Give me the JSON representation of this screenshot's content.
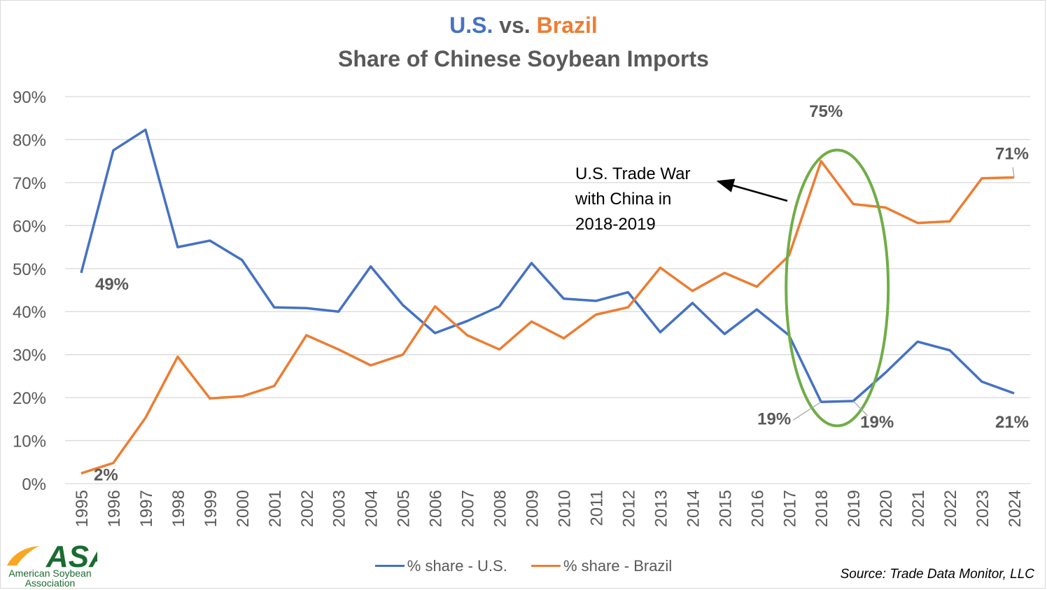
{
  "title": {
    "us": "U.S.",
    "vs": " vs. ",
    "brazil": "Brazil",
    "line2": "Share of Chinese Soybean Imports"
  },
  "legend": {
    "us": "% share - U.S.",
    "brazil": "% share - Brazil"
  },
  "source": "Source: Trade Data Monitor, LLC",
  "logo": {
    "mark": "ASA",
    "line1": "American Soybean",
    "line2": "Association"
  },
  "annotation": {
    "lines": [
      "U.S. Trade War",
      "with China in",
      "2018-2019"
    ]
  },
  "colors": {
    "us": "#4472c4",
    "brazil": "#ed7d31",
    "highlight": "#70ad47",
    "grid": "#d9d9d9",
    "axis_text": "#595959",
    "logo_green": "#1a6b30",
    "logo_orange": "#f7a823"
  },
  "chart_data": {
    "type": "line",
    "title": "U.S. vs. Brazil Share of Chinese Soybean Imports",
    "x": [
      "1995",
      "1996",
      "1997",
      "1998",
      "1999",
      "2000",
      "2001",
      "2002",
      "2003",
      "2004",
      "2005",
      "2006",
      "2007",
      "2008",
      "2009",
      "2010",
      "2011",
      "2012",
      "2013",
      "2014",
      "2015",
      "2016",
      "2017",
      "2018",
      "2019",
      "2020",
      "2021",
      "2022",
      "2023",
      "2024"
    ],
    "y_ticks": [
      "0%",
      "10%",
      "20%",
      "30%",
      "40%",
      "50%",
      "60%",
      "70%",
      "80%",
      "90%"
    ],
    "ylim": [
      0,
      90
    ],
    "grid": "horizontal",
    "legend_position": "bottom",
    "series": [
      {
        "name": "% share - U.S.",
        "values": [
          49,
          77.5,
          82.3,
          55,
          56.5,
          52,
          41,
          40.8,
          40,
          50.5,
          41.5,
          35,
          37.8,
          41.2,
          51.3,
          43,
          42.5,
          44.5,
          35.2,
          42,
          34.8,
          40.5,
          34.5,
          19,
          19.2,
          25.8,
          33,
          31,
          23.7,
          21
        ]
      },
      {
        "name": "% share - Brazil",
        "values": [
          2.4,
          4.8,
          15.3,
          29.5,
          19.8,
          20.3,
          22.7,
          34.5,
          31.2,
          27.5,
          30,
          41.2,
          34.5,
          31.2,
          37.7,
          33.8,
          39.3,
          41,
          50.2,
          44.8,
          49,
          45.8,
          53,
          75,
          65,
          64.2,
          60.6,
          61,
          71,
          71.2
        ]
      }
    ],
    "data_labels": [
      {
        "text": "49%",
        "series": "% share - U.S.",
        "x": "1995"
      },
      {
        "text": "2%",
        "series": "% share - Brazil",
        "x": "1995"
      },
      {
        "text": "75%",
        "series": "% share - Brazil",
        "x": "2018"
      },
      {
        "text": "71%",
        "series": "% share - Brazil",
        "x": "2024"
      },
      {
        "text": "19%",
        "series": "% share - U.S.",
        "x": "2018"
      },
      {
        "text": "19%",
        "series": "% share - U.S.",
        "x": "2019"
      },
      {
        "text": "21%",
        "series": "% share - U.S.",
        "x": "2024"
      }
    ]
  }
}
